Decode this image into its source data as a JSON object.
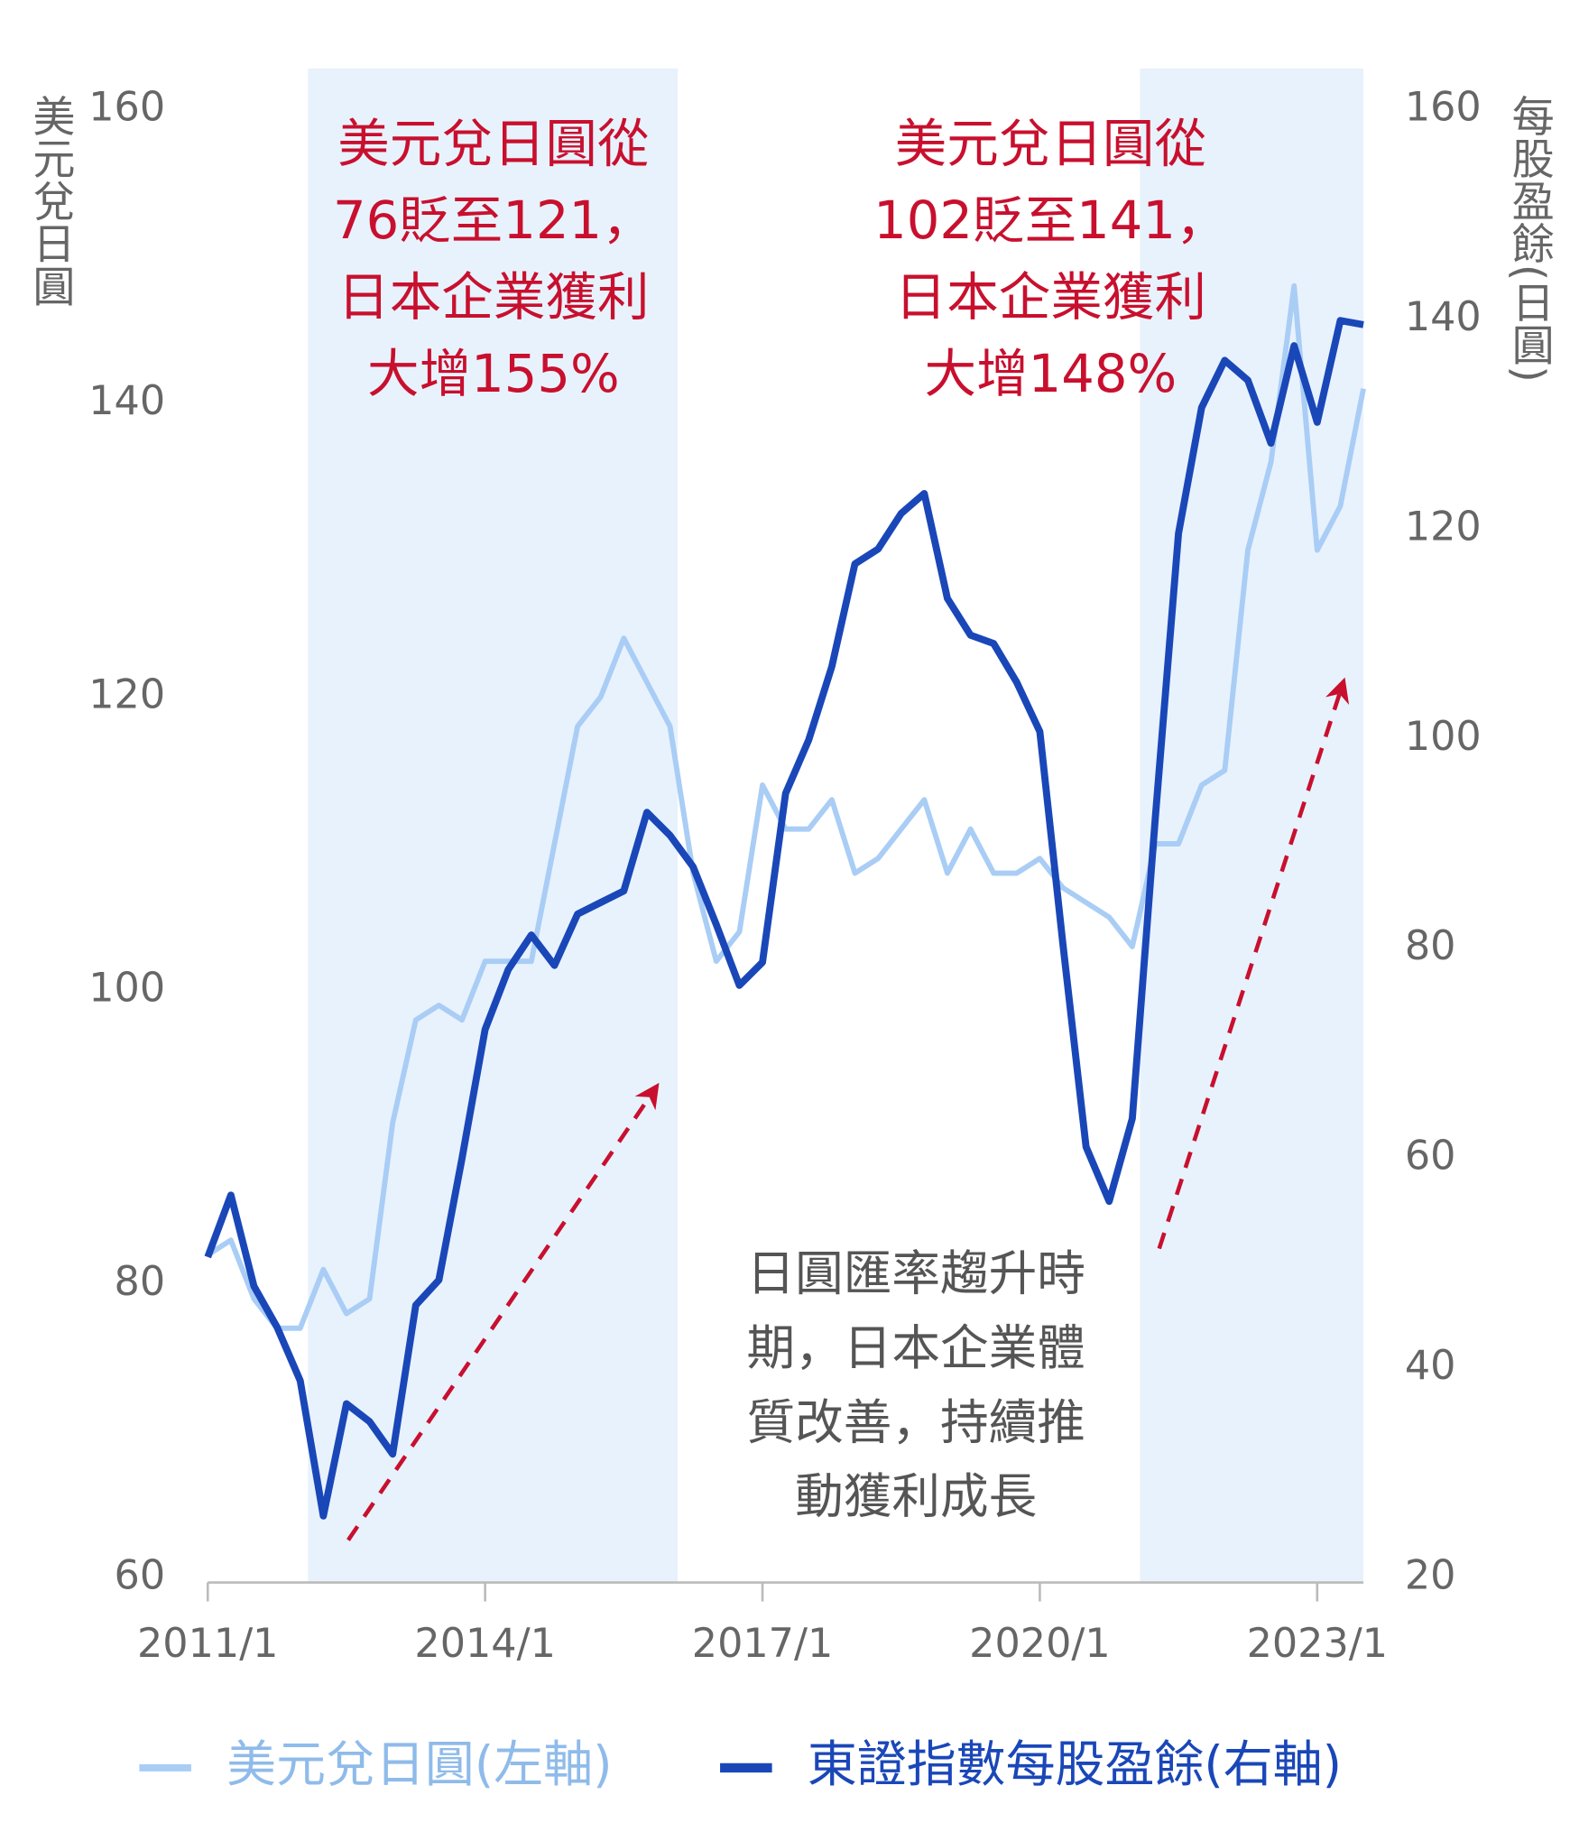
{
  "chart_data": {
    "type": "line",
    "y_label": "美元兌日圓",
    "y2_label": "每股盈餘(日圓)",
    "x": [
      "2011/1",
      "2011/4",
      "2011/7",
      "2011/10",
      "2012/1",
      "2012/4",
      "2012/7",
      "2012/10",
      "2013/1",
      "2013/4",
      "2013/7",
      "2013/10",
      "2014/1",
      "2014/4",
      "2014/7",
      "2014/10",
      "2015/1",
      "2015/4",
      "2015/7",
      "2015/10",
      "2016/1",
      "2016/4",
      "2016/7",
      "2016/10",
      "2017/1",
      "2017/4",
      "2017/7",
      "2017/10",
      "2018/1",
      "2018/4",
      "2018/7",
      "2018/10",
      "2019/1",
      "2019/4",
      "2019/7",
      "2019/10",
      "2020/1",
      "2020/4",
      "2020/7",
      "2020/10",
      "2021/1",
      "2021/4",
      "2021/7",
      "2021/10",
      "2022/1",
      "2022/4",
      "2022/7",
      "2022/10",
      "2023/1",
      "2023/4",
      "2023/7"
    ],
    "series": [
      {
        "name": "美元兌日圓(左軸)",
        "color": "#a9cdf5",
        "axis": "y",
        "values": [
          82,
          83,
          79,
          77,
          77,
          81,
          78,
          79,
          91,
          98,
          99,
          98,
          102,
          102,
          102,
          110,
          118,
          120,
          124,
          121,
          118,
          108,
          102,
          104,
          114,
          111,
          111,
          113,
          108,
          109,
          111,
          113,
          108,
          111,
          108,
          108,
          109,
          107,
          106,
          105,
          103,
          110,
          110,
          114,
          115,
          130,
          136,
          148,
          130,
          133,
          141
        ]
      },
      {
        "name": "東證指數每股盈餘(右軸)",
        "color": "#1a47b8",
        "axis": "y2",
        "values": [
          50.6,
          56.5,
          47.8,
          43.9,
          38.8,
          25.9,
          36.6,
          34.9,
          31.8,
          46,
          48.4,
          60,
          72.3,
          78,
          81.3,
          78.4,
          83.3,
          84.4,
          85.5,
          93,
          90.8,
          87.8,
          82.3,
          76.5,
          78.7,
          94.8,
          99.9,
          106.9,
          116.7,
          118.1,
          121.5,
          123.4,
          113.4,
          109.9,
          109.1,
          105.4,
          100.7,
          80.4,
          61.1,
          55.9,
          63.8,
          92.6,
          119.6,
          131.6,
          136.1,
          134.2,
          128.2,
          137.5,
          130.2,
          139.9,
          139.5
        ]
      }
    ],
    "xlim": [
      "2011/1",
      "2023/7"
    ],
    "xticks": [
      "2011/1",
      "2014/1",
      "2017/1",
      "2020/1",
      "2023/1"
    ],
    "ylim": [
      60,
      160
    ],
    "yticks": [
      60,
      80,
      100,
      120,
      140,
      160
    ],
    "y2lim": [
      20,
      160
    ],
    "y2ticks": [
      20,
      40,
      60,
      80,
      100,
      120,
      140,
      160
    ],
    "highlight_periods": [
      [
        "2012/2",
        "2016/2"
      ],
      [
        "2021/2",
        "2023/7"
      ]
    ],
    "highlight_color": "#e8f2fd",
    "annotations": [
      {
        "lines": [
          "美元兌日圓從",
          "76貶至121，",
          "日本企業獲利",
          "大增155%"
        ]
      },
      {
        "lines": [
          "美元兌日圓從",
          "102貶至141，",
          "日本企業獲利",
          "大增148%"
        ]
      },
      {
        "lines": [
          "日圓匯率趨升時",
          "期，日本企業體",
          "質改善，持續推",
          "動獲利成長"
        ]
      }
    ]
  }
}
